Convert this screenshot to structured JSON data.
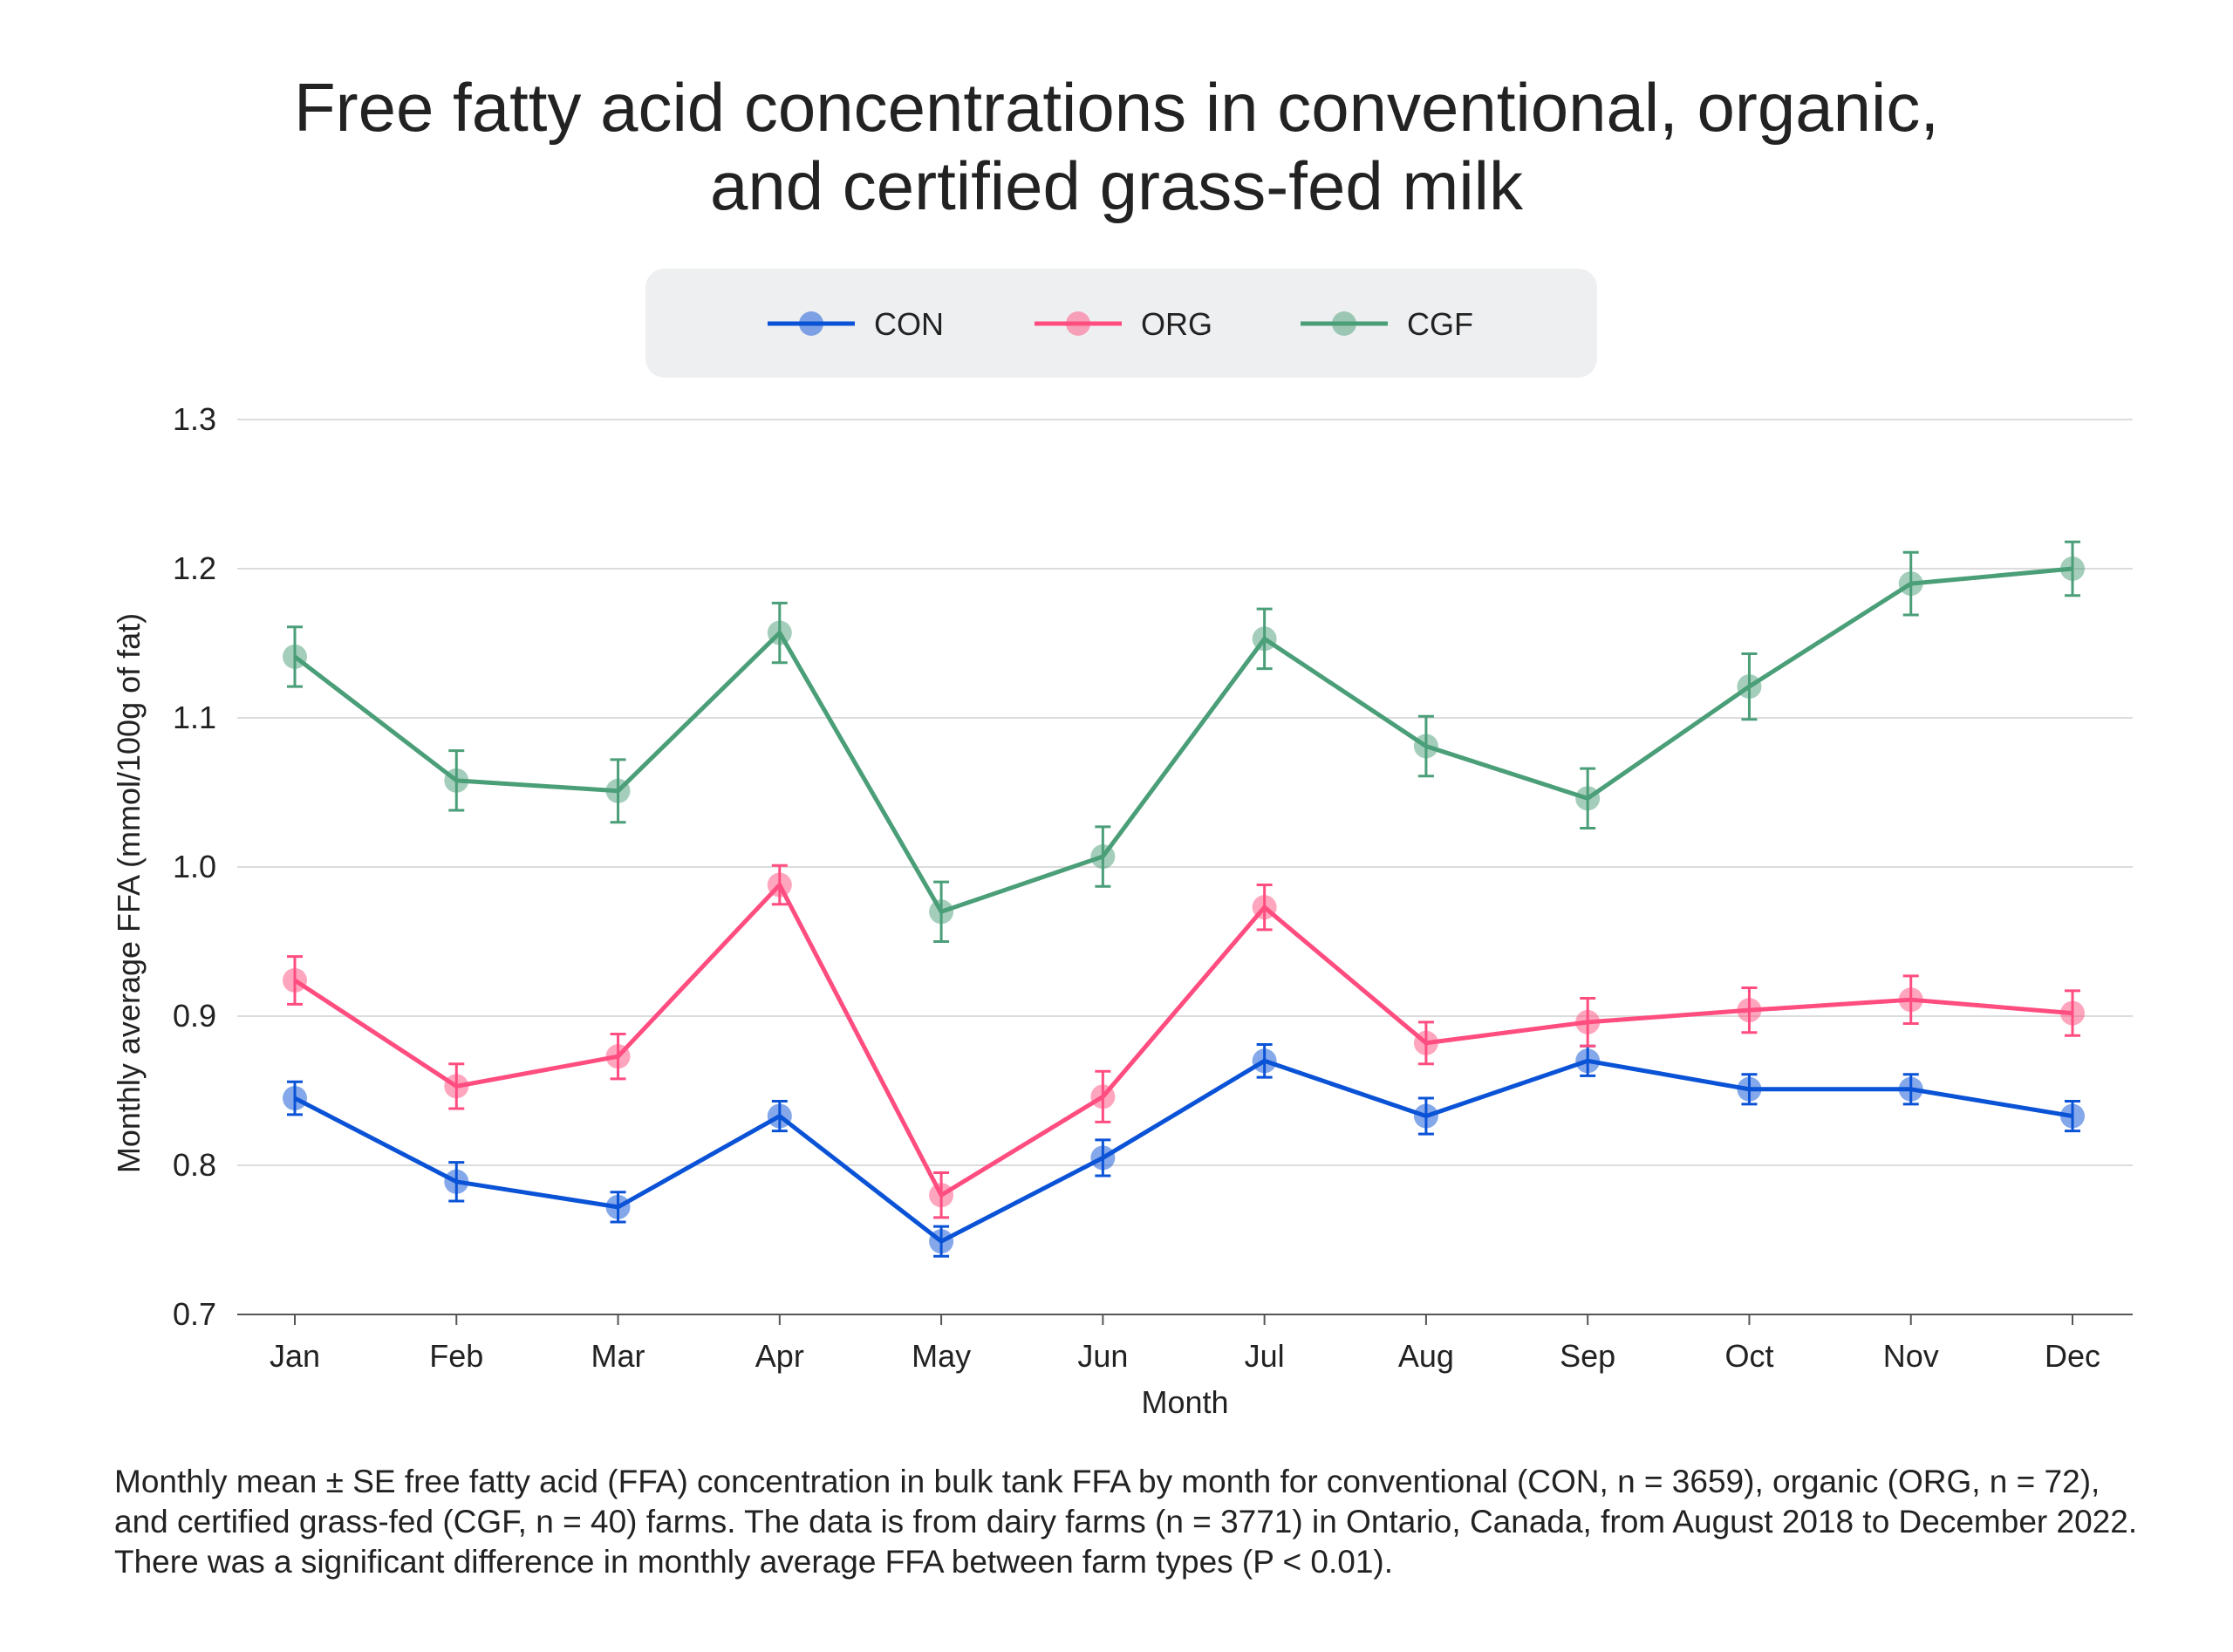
{
  "chart_data": {
    "type": "line",
    "title": "Free fatty acid concentrations in conventional, organic, and certified grass-fed milk",
    "title_lines": [
      "Free fatty acid concentrations in conventional, organic,",
      "and certified grass-fed milk"
    ],
    "xlabel": "Month",
    "ylabel": "Monthly average FFA (mmol/100g of fat)",
    "categories": [
      "Jan",
      "Feb",
      "Mar",
      "Apr",
      "May",
      "Jun",
      "Jul",
      "Aug",
      "Sep",
      "Oct",
      "Nov",
      "Dec"
    ],
    "ylim": [
      0.7,
      1.3
    ],
    "yticks": [
      "0.7",
      "0.8",
      "0.9",
      "1.0",
      "1.1",
      "1.2",
      "1.3"
    ],
    "grid": true,
    "legend_position": "top-center",
    "error_bars": "SE",
    "series": [
      {
        "name": "CON",
        "color": "#0a52d6",
        "values": [
          0.845,
          0.789,
          0.772,
          0.833,
          0.749,
          0.805,
          0.87,
          0.833,
          0.87,
          0.851,
          0.851,
          0.833
        ],
        "errors": [
          0.011,
          0.013,
          0.01,
          0.01,
          0.01,
          0.012,
          0.011,
          0.012,
          0.01,
          0.01,
          0.01,
          0.01
        ]
      },
      {
        "name": "ORG",
        "color": "#ff4d80",
        "values": [
          0.924,
          0.853,
          0.873,
          0.988,
          0.78,
          0.846,
          0.973,
          0.882,
          0.896,
          0.904,
          0.911,
          0.902
        ],
        "errors": [
          0.016,
          0.015,
          0.015,
          0.013,
          0.015,
          0.017,
          0.015,
          0.014,
          0.016,
          0.015,
          0.016,
          0.015
        ]
      },
      {
        "name": "CGF",
        "color": "#4a9e78",
        "values": [
          1.141,
          1.058,
          1.051,
          1.157,
          0.97,
          1.007,
          1.153,
          1.081,
          1.046,
          1.121,
          1.19,
          1.2
        ],
        "errors": [
          0.02,
          0.02,
          0.021,
          0.02,
          0.02,
          0.02,
          0.02,
          0.02,
          0.02,
          0.022,
          0.021,
          0.018
        ]
      }
    ]
  },
  "caption": "Monthly mean ± SE free fatty acid (FFA) concentration in bulk tank FFA by month for conventional (CON, n = 3659), organic (ORG, n = 72), and certified grass-fed (CGF, n = 40) farms. The data is from dairy farms (n = 3771) in Ontario, Canada, from August 2018 to December 2022. There was a significant difference in monthly average FFA between farm types (P < 0.01)."
}
